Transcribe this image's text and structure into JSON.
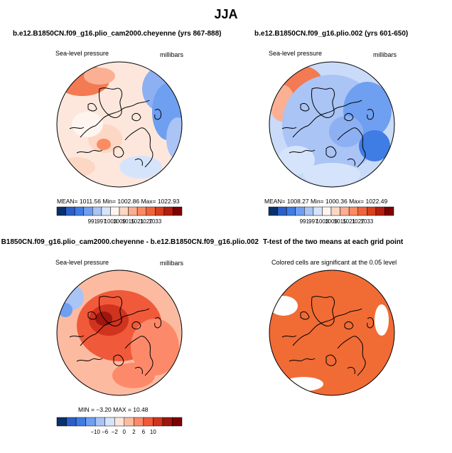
{
  "figure": {
    "title": "JJA"
  },
  "panels": [
    {
      "title": "b.e12.B1850CN.f09_g16.plio_cam2000.cheyenne (yrs 867-888)",
      "variable": "Sea-level pressure",
      "units": "millibars",
      "stats": "MEAN= 1011.56   Min= 1002.86   Max= 1022.93",
      "colorbar": {
        "labels": [
          "991",
          "997",
          "1003",
          "1009",
          "1015",
          "1021",
          "1027",
          "1033"
        ],
        "colors": [
          "#08306b",
          "#2b5fc8",
          "#3f7ce3",
          "#6f9ff0",
          "#a9c4f5",
          "#d6e4fb",
          "#fff5f0",
          "#fcd7c3",
          "#fcae91",
          "#fb8b63",
          "#f0643c",
          "#d7401c",
          "#b21e10",
          "#7f0000"
        ]
      }
    },
    {
      "title": "b.e12.B1850CN.f09_g16.plio.002 (yrs 601-650)",
      "variable": "Sea-level pressure",
      "units": "millibars",
      "stats": "MEAN= 1008.27   Min= 1000.36   Max= 1022.49",
      "colorbar": {
        "labels": [
          "991",
          "997",
          "1003",
          "1009",
          "1015",
          "1021",
          "1027",
          "1033"
        ],
        "colors": [
          "#08306b",
          "#2b5fc8",
          "#3f7ce3",
          "#6f9ff0",
          "#a9c4f5",
          "#d6e4fb",
          "#fff5f0",
          "#fcd7c3",
          "#fcae91",
          "#fb8b63",
          "#f0643c",
          "#d7401c",
          "#b21e10",
          "#7f0000"
        ]
      }
    },
    {
      "title": "B1850CN.f09_g16.plio_cam2000.cheyenne - b.e12.B1850CN.f09_g16.plio.002",
      "variable": "Sea-level pressure",
      "units": "millibars",
      "stats": "MIN =  −3.20  MAX =  10.48",
      "colorbar": {
        "labels": [
          "−10",
          "−6",
          "−2",
          "0",
          "2",
          "6",
          "10"
        ],
        "colors": [
          "#08306b",
          "#2b5fc8",
          "#3f7ce3",
          "#6f9ff0",
          "#a9c4f5",
          "#d6e4fb",
          "#fee5d9",
          "#fcbba1",
          "#fc8a6a",
          "#f05a3a",
          "#d0331e",
          "#a0150e",
          "#7f0000"
        ]
      }
    },
    {
      "title": "T-test of the two means at each grid point",
      "note": "Colored cells are significant at the 0.05 level"
    }
  ],
  "colors": {
    "significant": "#f16b35",
    "coast": "#000000"
  }
}
